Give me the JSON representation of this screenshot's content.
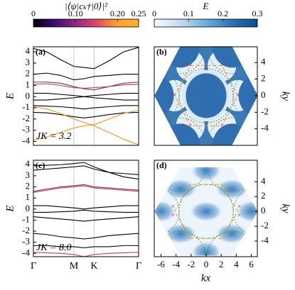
{
  "chart_data": [
    {
      "type": "colorbar",
      "label": "|⟨ψ|cₖ†|0⟩|²",
      "xlim": [
        0,
        0.25
      ],
      "xticks": [
        0,
        {
          "value": 0.1,
          "label": "0.10"
        },
        {
          "value": 0.2,
          "label": "0.20"
        },
        0.25
      ],
      "colors": [
        "#000004",
        "#3b0f70",
        "#8c2981",
        "#de4968",
        "#fe9f2c",
        "#fcae32"
      ]
    },
    {
      "type": "colorbar",
      "label": "E",
      "xlim": [
        0,
        0.3
      ],
      "xticks": [
        0,
        0.1,
        0.2,
        0.3
      ],
      "colors": [
        "#f7fbff",
        "#c6dbef",
        "#6baed6",
        "#2f72b5",
        "#0d4a8f"
      ]
    },
    {
      "type": "line",
      "panel_label": "(a)",
      "ylabel": "E",
      "annotation": "JK = 3.2",
      "ylim": [
        -4.35,
        4.45
      ],
      "yticks": [
        -4,
        -3,
        -2,
        -1,
        0,
        1,
        2,
        3,
        4
      ],
      "xlim": [
        0,
        2.6
      ],
      "vlines": [
        1,
        1.5
      ],
      "x": [
        0,
        0.33,
        0.67,
        1,
        1.25,
        1.5,
        1.87,
        2.23,
        2.6
      ],
      "series": [
        {
          "color": "#000000",
          "values": [
            4.3,
            4.0,
            3.3,
            2.7,
            2.6,
            2.5,
            3.2,
            4.0,
            4.4
          ]
        },
        {
          "color": "#000000",
          "values": [
            2.0,
            2.1,
            1.9,
            1.5,
            1.6,
            1.8,
            1.9,
            2.0,
            2.0
          ]
        },
        {
          "color": "#7b2a7c",
          "values": [
            1.3,
            1.3,
            1.2,
            0.9,
            0.7,
            0.6,
            0.9,
            1.2,
            1.3
          ]
        },
        {
          "color": "#c8403a",
          "values": [
            1.1,
            1.15,
            1.0,
            0.8,
            0.75,
            0.8,
            0.9,
            1.05,
            1.1
          ]
        },
        {
          "color": "#000000",
          "values": [
            0.3,
            0.3,
            0.2,
            0.1,
            0.0,
            0.1,
            0.2,
            0.3,
            0.3
          ]
        },
        {
          "color": "#000000",
          "values": [
            -0.3,
            -0.3,
            -0.2,
            -0.1,
            0.0,
            -0.1,
            -0.2,
            -0.3,
            -0.3
          ]
        },
        {
          "color": "#000000",
          "values": [
            -0.8,
            -0.85,
            -0.9,
            -1.0,
            -1.1,
            -1.0,
            -0.9,
            -0.8,
            -0.8
          ]
        },
        {
          "color": "#000000",
          "values": [
            -1.4,
            -1.45,
            -1.6,
            -1.8,
            -1.9,
            -1.8,
            -1.6,
            -1.45,
            -1.4
          ]
        },
        {
          "color": "#f7941d",
          "values": [
            -0.9,
            -1.1,
            -1.5,
            -2.0,
            -2.3,
            -2.6,
            -3.2,
            -3.8,
            -4.3
          ]
        },
        {
          "color": "#f7941d",
          "values": [
            -3.9,
            -3.6,
            -3.2,
            -2.8,
            -2.6,
            -2.5,
            -2.0,
            -1.5,
            -1.2
          ]
        }
      ]
    },
    {
      "type": "heatmap",
      "panel_label": "(b)",
      "ylabel": "ky",
      "style": "b",
      "xlim": [
        -6.9,
        6.8
      ],
      "ylim": [
        -6,
        5.9
      ],
      "yticks": [
        -4,
        -2,
        0,
        2,
        4
      ]
    },
    {
      "type": "line",
      "panel_label": "(c)",
      "ylabel": "E",
      "annotation": "JK = 8.0",
      "ylim": [
        -4.3,
        4.4
      ],
      "yticks": [
        -4,
        -3,
        -2,
        -1,
        0,
        1,
        2,
        3,
        4
      ],
      "xlim": [
        0,
        2.6
      ],
      "vlines": [
        1,
        1.5
      ],
      "xticks": [
        {
          "value": 0,
          "label": "Γ"
        },
        {
          "value": 1,
          "label": "M"
        },
        {
          "value": 1.5,
          "label": "K"
        },
        {
          "value": 2.6,
          "label": "Γ"
        }
      ],
      "x": [
        0,
        0.33,
        0.67,
        1,
        1.25,
        1.5,
        1.87,
        2.23,
        2.6
      ],
      "series": [
        {
          "color": "#000000",
          "values": [
            3.9,
            3.95,
            4.0,
            4.1,
            4.2,
            3.8,
            3.3,
            2.9,
            2.7
          ]
        },
        {
          "color": "#000000",
          "values": [
            3.5,
            3.6,
            3.7,
            3.8,
            3.9,
            3.6,
            3.3,
            3.2,
            3.1
          ]
        },
        {
          "color": "#7b2a7c",
          "values": [
            1.6,
            1.8,
            2.0,
            2.1,
            2.2,
            2.0,
            1.9,
            1.8,
            1.7
          ]
        },
        {
          "color": "#c8403a",
          "values": [
            1.5,
            1.7,
            1.9,
            2.0,
            2.1,
            1.9,
            1.8,
            1.7,
            1.6
          ]
        },
        {
          "color": "#000000",
          "values": [
            0.3,
            0.3,
            0.2,
            0.1,
            0.0,
            0.1,
            0.2,
            0.3,
            0.3
          ]
        },
        {
          "color": "#000000",
          "values": [
            -0.3,
            -0.3,
            -0.25,
            -0.2,
            -0.1,
            -0.2,
            -0.25,
            -0.3,
            -0.3
          ]
        },
        {
          "color": "#000000",
          "values": [
            -0.7,
            -0.8,
            -0.9,
            -1.0,
            -1.1,
            -1.0,
            -0.9,
            -0.8,
            -0.7
          ]
        },
        {
          "color": "#000000",
          "values": [
            -2.2,
            -2.3,
            -2.5,
            -2.6,
            -2.7,
            -2.6,
            -2.4,
            -2.3,
            -2.2
          ]
        },
        {
          "color": "#000000",
          "values": [
            -3.3,
            -3.3,
            -3.4,
            -3.4,
            -3.5,
            -3.4,
            -3.4,
            -3.3,
            -3.3
          ]
        },
        {
          "color": "#c8403a",
          "values": [
            -3.9,
            -3.95,
            -4.0,
            -4.1,
            -4.3,
            -4.1,
            -4.0,
            -3.95,
            -3.9
          ]
        }
      ]
    },
    {
      "type": "heatmap",
      "panel_label": "(d)",
      "ylabel": "ky",
      "xlabel": "kx",
      "style": "d",
      "xlim": [
        -6.9,
        6.8
      ],
      "ylim": [
        -6.1,
        6.9
      ],
      "yticks": [
        -4,
        -2,
        0,
        2,
        4
      ],
      "xticks": [
        -6,
        -4,
        -2,
        0,
        2,
        4,
        6
      ]
    }
  ]
}
